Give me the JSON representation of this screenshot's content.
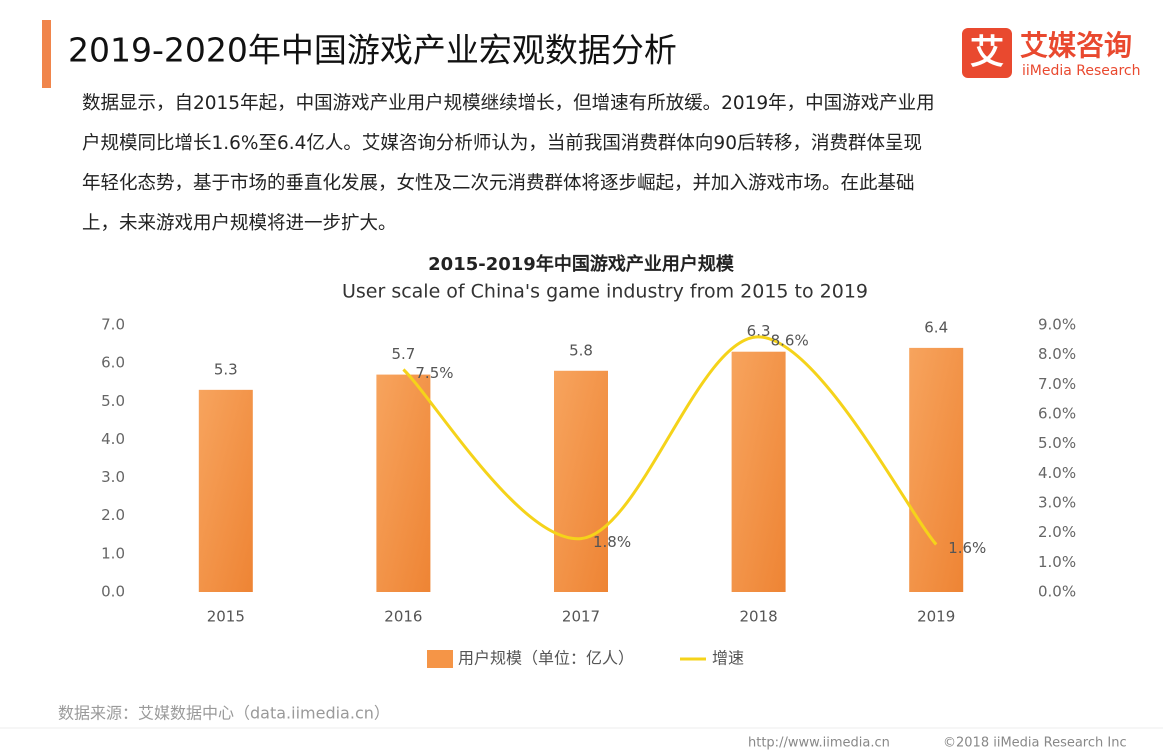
{
  "header": {
    "title": "2019-2020年中国游戏产业宏观数据分析",
    "logo_icon": "艾",
    "logo_name": "艾媒咨询",
    "logo_sub": "iiMedia Research"
  },
  "paragraph": [
    "数据显示，自2015年起，中国游戏产业用户规模继续增长，但增速有所放缓。2019年，中国游戏产业用",
    "户规模同比增长1.6%至6.4亿人。艾媒咨询分析师认为，当前我国消费群体向90后转移，消费群体呈现",
    "年轻化态势，基于市场的垂直化发展，女性及二次元消费群体将逐步崛起，并加入游戏市场。在此基础",
    "上，未来游戏用户规模将进一步扩大。"
  ],
  "chart_data": {
    "type": "bar_line",
    "title": "2015-2019年中国游戏产业用户规模",
    "subtitle": "User scale of China's game industry from 2015 to 2019",
    "categories": [
      "2015",
      "2016",
      "2017",
      "2018",
      "2019"
    ],
    "series": [
      {
        "name": "用户规模（单位：亿人）",
        "type": "bar",
        "color": "#f59547",
        "values": [
          5.3,
          5.7,
          5.8,
          6.3,
          6.4
        ]
      },
      {
        "name": "增速",
        "type": "line",
        "axis": "y2",
        "color": "#f5d31a",
        "values": [
          null,
          7.5,
          1.8,
          8.6,
          1.6
        ],
        "value_labels": [
          null,
          "7.5%",
          "1.8%",
          "8.6%",
          "1.6%"
        ]
      }
    ],
    "ylim": [
      0,
      7
    ],
    "yticks": [
      {
        "value": 0,
        "label": "0.0"
      },
      {
        "value": 1,
        "label": "1.0"
      },
      {
        "value": 2,
        "label": "2.0"
      },
      {
        "value": 3,
        "label": "3.0"
      },
      {
        "value": 4,
        "label": "4.0"
      },
      {
        "value": 5,
        "label": "5.0"
      },
      {
        "value": 6,
        "label": "6.0"
      },
      {
        "value": 7,
        "label": "7.0"
      }
    ],
    "y2lim": [
      0,
      9
    ],
    "y2ticks": [
      {
        "value": 0,
        "label": "0.0%"
      },
      {
        "value": 1,
        "label": "1.0%"
      },
      {
        "value": 2,
        "label": "2.0%"
      },
      {
        "value": 3,
        "label": "3.0%"
      },
      {
        "value": 4,
        "label": "4.0%"
      },
      {
        "value": 5,
        "label": "5.0%"
      },
      {
        "value": 6,
        "label": "6.0%"
      },
      {
        "value": 7,
        "label": "7.0%"
      },
      {
        "value": 8,
        "label": "8.0%"
      },
      {
        "value": 9,
        "label": "9.0%"
      }
    ],
    "legend": "bottom"
  },
  "source": "数据来源：艾媒数据中心（data.iimedia.cn）",
  "footer": {
    "url": "http://www.iimedia.cn",
    "copyright": "©2018  iiMedia Research  Inc"
  }
}
